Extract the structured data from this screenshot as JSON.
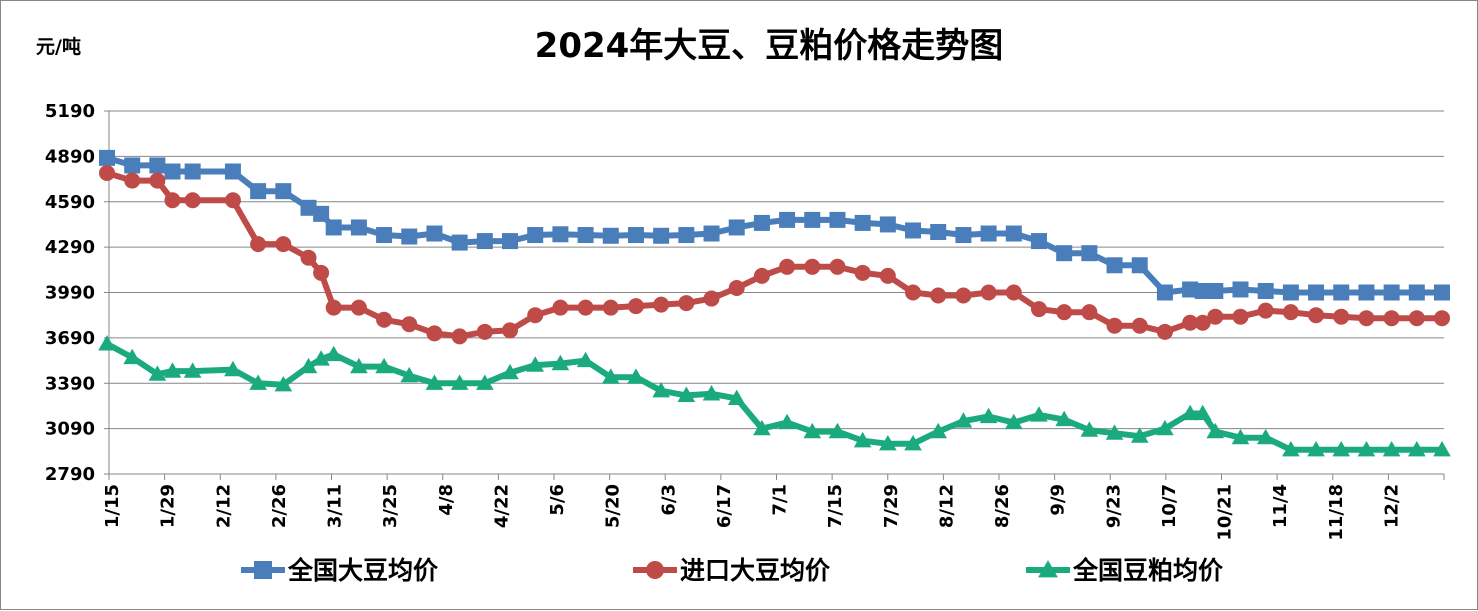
{
  "chart_data": {
    "type": "line",
    "title": "2024年大豆、豆粕价格走势图",
    "ylabel": "元/吨",
    "xlabel": "",
    "ylim": [
      2790,
      5190
    ],
    "yticks": [
      2790,
      3090,
      3390,
      3690,
      3990,
      4290,
      4590,
      4890,
      5190
    ],
    "xtick_labels": [
      "1/15",
      "1/29",
      "2/12",
      "2/26",
      "3/11",
      "3/25",
      "4/8",
      "4/22",
      "5/6",
      "5/20",
      "6/3",
      "6/17",
      "7/1",
      "7/15",
      "7/29",
      "8/12",
      "8/26",
      "9/9",
      "9/23",
      "10/7",
      "10/21",
      "11/4",
      "11/18",
      "12/2"
    ],
    "grid": true,
    "legend_position": "bottom",
    "x": [
      0,
      1,
      2,
      2.6,
      3.4,
      5,
      6,
      7,
      8,
      8.5,
      9,
      10,
      11,
      12,
      13,
      14,
      15,
      16,
      17,
      18,
      19,
      20,
      21,
      22,
      23,
      24,
      25,
      26,
      27,
      28,
      29,
      30,
      31,
      32,
      33,
      34,
      35,
      36,
      37,
      38,
      39,
      40,
      41,
      42,
      43,
      43.5,
      44,
      45,
      46,
      47,
      48,
      49,
      50,
      51,
      52,
      53
    ],
    "series": [
      {
        "name": "全国大豆均价",
        "color": "#4A7EBB",
        "marker": "square",
        "values": [
          4880,
          4830,
          4830,
          4790,
          4790,
          4790,
          4660,
          4660,
          4550,
          4510,
          4420,
          4420,
          4370,
          4360,
          4380,
          4320,
          4330,
          4330,
          4370,
          4375,
          4370,
          4365,
          4370,
          4365,
          4370,
          4380,
          4420,
          4450,
          4470,
          4470,
          4470,
          4450,
          4440,
          4400,
          4390,
          4370,
          4380,
          4380,
          4330,
          4250,
          4250,
          4170,
          4170,
          3990,
          4010,
          4000,
          4000,
          4010,
          4000,
          3990,
          3990,
          3990,
          3990,
          3990,
          3990,
          3990
        ]
      },
      {
        "name": "进口大豆均价",
        "color": "#BE4B48",
        "marker": "circle",
        "values": [
          4780,
          4730,
          4730,
          4600,
          4600,
          4600,
          4310,
          4310,
          4220,
          4120,
          3890,
          3890,
          3810,
          3780,
          3720,
          3700,
          3730,
          3740,
          3840,
          3890,
          3890,
          3890,
          3900,
          3910,
          3920,
          3950,
          4020,
          4100,
          4160,
          4160,
          4160,
          4120,
          4100,
          3990,
          3970,
          3970,
          3990,
          3990,
          3880,
          3860,
          3860,
          3770,
          3770,
          3730,
          3790,
          3790,
          3830,
          3830,
          3870,
          3860,
          3840,
          3830,
          3820,
          3820,
          3820,
          3820
        ]
      },
      {
        "name": "全国豆粕均价",
        "color": "#1AAA7E",
        "marker": "triangle",
        "values": [
          3650,
          3560,
          3450,
          3470,
          3470,
          3480,
          3390,
          3380,
          3500,
          3550,
          3580,
          3500,
          3500,
          3440,
          3390,
          3390,
          3390,
          3460,
          3510,
          3520,
          3540,
          3430,
          3430,
          3340,
          3310,
          3320,
          3290,
          3090,
          3130,
          3070,
          3070,
          3010,
          2990,
          2990,
          3070,
          3140,
          3170,
          3130,
          3180,
          3150,
          3080,
          3060,
          3040,
          3090,
          3190,
          3190,
          3070,
          3030,
          3030,
          2950,
          2950,
          2950,
          2950,
          2950,
          2950,
          2950
        ]
      }
    ]
  }
}
